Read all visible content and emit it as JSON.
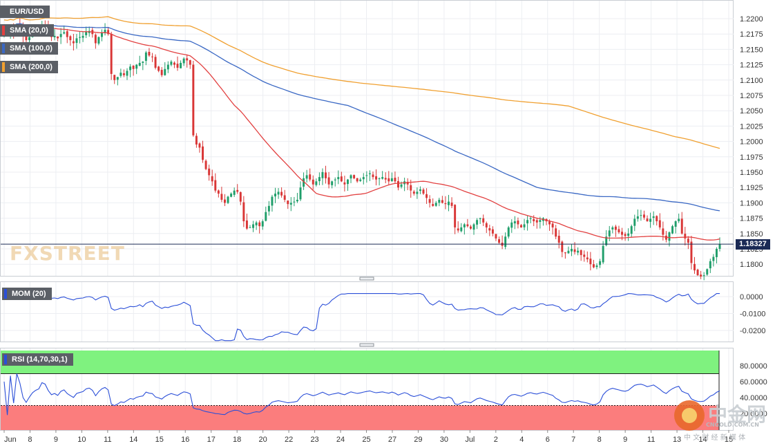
{
  "instrument": "EUR/USD",
  "brand": "FXSTREET",
  "watermark_cn": {
    "logo": "中金网",
    "tagline": "中 文 财 经 新 媒 体",
    "site": "CNGOLD.COM.CN"
  },
  "colors": {
    "bull": "#1f9e6a",
    "bear": "#d93636",
    "sma20": "#e24040",
    "sma100": "#3a68c4",
    "sma200": "#f0a030",
    "mom": "#2b4fd8",
    "rsi": "#2b4fd8",
    "overbought": "#7ff27f",
    "oversold": "#fb7d7d",
    "price_line": "#1b2a55"
  },
  "legend": {
    "main": [
      "SMA (20,0)",
      "SMA (100,0)",
      "SMA (200,0)"
    ],
    "mom": "MOM (20)",
    "rsi": "RSI (14,70,30,1)"
  },
  "current_price": "1.18327",
  "x_labels": [
    "Jun",
    "8",
    "9",
    "10",
    "11",
    "14",
    "15",
    "16",
    "17",
    "18",
    "20",
    "22",
    "23",
    "24",
    "25",
    "27",
    "29",
    "30",
    "Jul",
    "2",
    "4",
    "6",
    "7",
    "8",
    "9",
    "11",
    "13",
    "14",
    "15"
  ],
  "chart_data": [
    {
      "type": "candlestick",
      "title": "EUR/USD",
      "ylim": [
        1.1775,
        1.222
      ],
      "y_ticks": [
        "1.2200",
        "1.2175",
        "1.2150",
        "1.2125",
        "1.2100",
        "1.2075",
        "1.2050",
        "1.2025",
        "1.2000",
        "1.1975",
        "1.1950",
        "1.1925",
        "1.1900",
        "1.1875",
        "1.1850",
        "1.1825",
        "1.1800"
      ],
      "grid": true,
      "close": [
        1.218,
        1.2178,
        1.2182,
        1.2176,
        1.219,
        1.2185,
        1.2172,
        1.2165,
        1.217,
        1.2175,
        1.2178,
        1.218,
        1.219,
        1.2188,
        1.2178,
        1.217,
        1.2172,
        1.2168,
        1.2175,
        1.2178,
        1.217,
        1.2165,
        1.216,
        1.2168,
        1.217,
        1.2172,
        1.2178,
        1.218,
        1.2175,
        1.216,
        1.217,
        1.2178,
        1.2182,
        1.2175,
        1.211,
        1.21,
        1.2105,
        1.2112,
        1.2108,
        1.2115,
        1.2122,
        1.2118,
        1.2125,
        1.2128,
        1.213,
        1.2145,
        1.214,
        1.2138,
        1.212,
        1.2115,
        1.2108,
        1.2118,
        1.2125,
        1.213,
        1.2125,
        1.212,
        1.2128,
        1.2135,
        1.2132,
        1.2125,
        1.201,
        1.1995,
        1.199,
        1.197,
        1.1955,
        1.1945,
        1.1935,
        1.192,
        1.1915,
        1.1905,
        1.19,
        1.191,
        1.1915,
        1.192,
        1.1918,
        1.1902,
        1.187,
        1.1858,
        1.186,
        1.1865,
        1.1868,
        1.1862,
        1.187,
        1.1885,
        1.1895,
        1.191,
        1.1915,
        1.1918,
        1.1912,
        1.1905,
        1.1898,
        1.19,
        1.1902,
        1.1905,
        1.1925,
        1.194,
        1.1945,
        1.1938,
        1.193,
        1.1935,
        1.1942,
        1.195,
        1.194,
        1.193,
        1.1935,
        1.1938,
        1.1942,
        1.1935,
        1.193,
        1.1938,
        1.1945,
        1.194,
        1.1935,
        1.1938,
        1.1942,
        1.1945,
        1.1948,
        1.1942,
        1.1938,
        1.194,
        1.1942,
        1.1938,
        1.1935,
        1.194,
        1.1935,
        1.1925,
        1.193,
        1.1935,
        1.193,
        1.192,
        1.1915,
        1.1918,
        1.1922,
        1.1915,
        1.1908,
        1.19,
        1.1895,
        1.19,
        1.1905,
        1.19,
        1.1898,
        1.1902,
        1.1895,
        1.186,
        1.1855,
        1.186,
        1.1865,
        1.1862,
        1.1858,
        1.1865,
        1.1872,
        1.1875,
        1.1868,
        1.186,
        1.1855,
        1.185,
        1.1842,
        1.1835,
        1.183,
        1.1845,
        1.186,
        1.1868,
        1.187,
        1.1865,
        1.186,
        1.1865,
        1.1872,
        1.1875,
        1.187,
        1.1868,
        1.1872,
        1.1875,
        1.187,
        1.1865,
        1.186,
        1.1845,
        1.1835,
        1.182,
        1.1818,
        1.1822,
        1.1825,
        1.182,
        1.1822,
        1.1815,
        1.1812,
        1.1808,
        1.18,
        1.1795,
        1.1798,
        1.1805,
        1.183,
        1.1845,
        1.1855,
        1.186,
        1.1856,
        1.1852,
        1.1848,
        1.1846,
        1.185,
        1.1862,
        1.1874,
        1.1878,
        1.188,
        1.1876,
        1.187,
        1.1874,
        1.1878,
        1.187,
        1.186,
        1.1848,
        1.184,
        1.1852,
        1.1862,
        1.187,
        1.1874,
        1.185,
        1.1842,
        1.1835,
        1.1802,
        1.179,
        1.1782,
        1.178,
        1.1782,
        1.1792,
        1.1805,
        1.1812,
        1.1825,
        1.18327
      ]
    },
    {
      "type": "line",
      "title": "MOM (20)",
      "ylim": [
        -0.0265,
        0.002
      ],
      "y_ticks": [
        "0.0000",
        "-0.0100",
        "-0.0200"
      ],
      "series": [
        {
          "name": "MOM (20)"
        }
      ]
    },
    {
      "type": "line",
      "title": "RSI (14,70,30,1)",
      "ylim": [
        14,
        100
      ],
      "y_ticks": [
        "80.0000",
        "60.0000",
        "40.0000",
        "20.0000"
      ],
      "overbought": 70,
      "oversold": 30,
      "series": [
        {
          "name": "RSI (14,70,30,1)"
        }
      ]
    }
  ]
}
